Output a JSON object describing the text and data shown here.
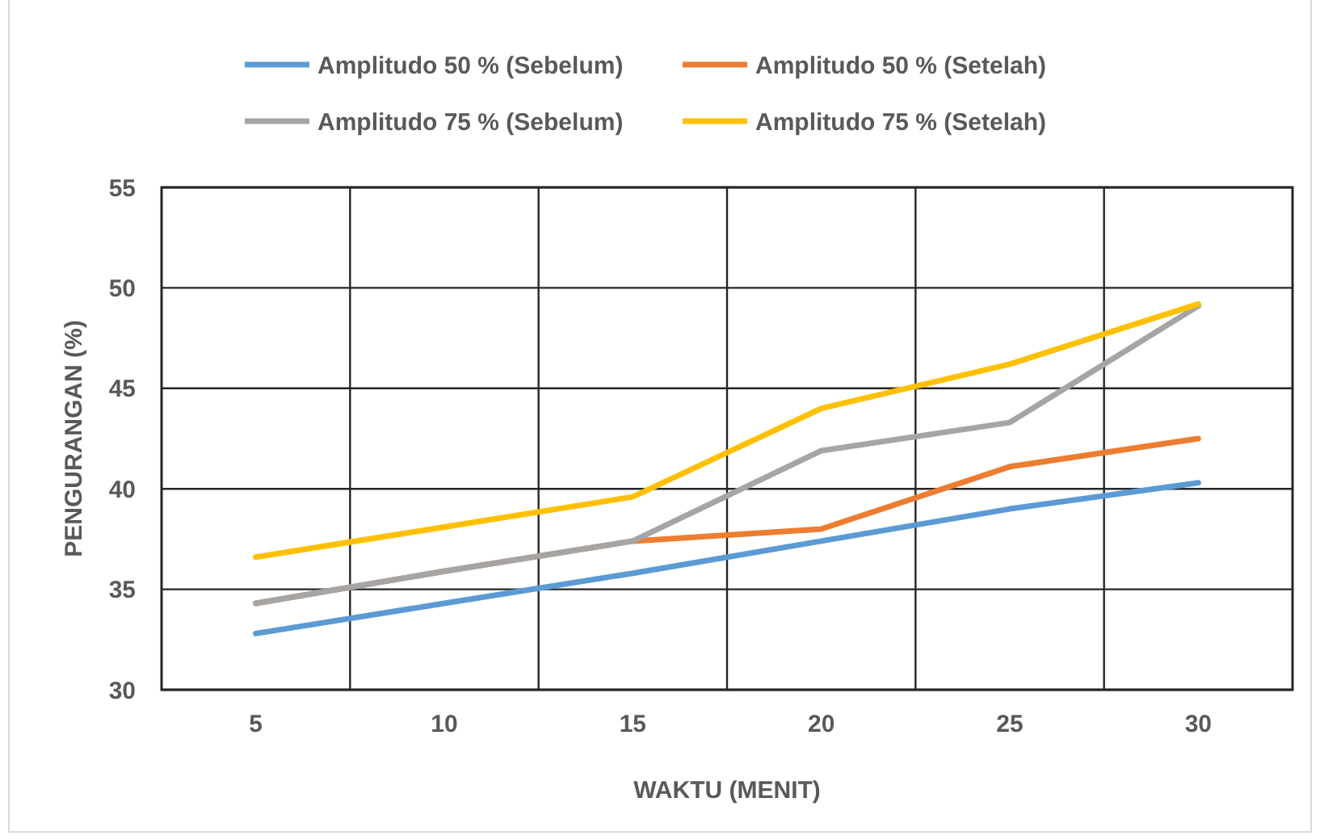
{
  "chart_data": {
    "type": "line",
    "xlabel": "WAKTU (MENIT)",
    "ylabel": "PENGURANGAN (%)",
    "categories": [
      "5",
      "10",
      "15",
      "20",
      "25",
      "30"
    ],
    "series": [
      {
        "name": "Amplitudo 50 % (Sebelum)",
        "color": "#5b9bd5",
        "values": [
          32.8,
          34.3,
          35.8,
          37.4,
          39.0,
          40.3
        ]
      },
      {
        "name": "Amplitudo 50 % (Setelah)",
        "color": "#ed7d31",
        "values": [
          34.3,
          35.9,
          37.4,
          38.0,
          41.1,
          42.5
        ]
      },
      {
        "name": "Amplitudo 75 % (Sebelum)",
        "color": "#a5a5a5",
        "values": [
          34.3,
          35.9,
          37.4,
          41.9,
          43.3,
          49.1
        ]
      },
      {
        "name": "Amplitudo 75 % (Setelah)",
        "color": "#ffc000",
        "values": [
          36.6,
          38.1,
          39.6,
          44.0,
          46.2,
          49.2
        ]
      }
    ],
    "ylim": [
      30,
      55
    ],
    "yticks": [
      30,
      35,
      40,
      45,
      50,
      55
    ],
    "grid": true,
    "legend": "top"
  }
}
